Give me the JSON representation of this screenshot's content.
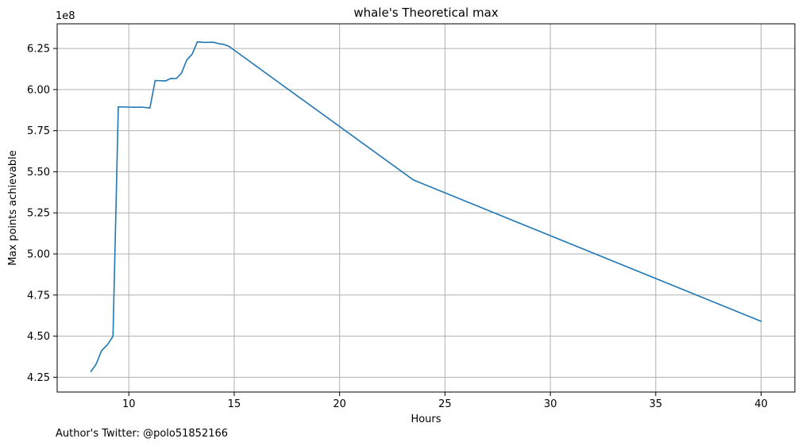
{
  "chart_data": {
    "type": "line",
    "title": "whale's Theoretical max",
    "xlabel": "Hours",
    "ylabel": "Max points achievable",
    "y_offset_label": "1e8",
    "y_scale_factor": 100000000,
    "footnote": "Author's Twitter: @polo51852166",
    "xlim": [
      6.6,
      41.6
    ],
    "ylim": [
      4.16,
      6.4
    ],
    "grid": true,
    "line_color": "#1f77b4",
    "x_ticks": [
      10,
      15,
      20,
      25,
      30,
      35,
      40
    ],
    "x_tick_labels": [
      "10",
      "15",
      "20",
      "25",
      "30",
      "35",
      "40"
    ],
    "y_ticks": [
      4.25,
      4.5,
      4.75,
      5.0,
      5.25,
      5.5,
      5.75,
      6.0,
      6.25
    ],
    "y_tick_labels": [
      "4.25",
      "4.50",
      "4.75",
      "5.00",
      "5.25",
      "5.50",
      "5.75",
      "6.00",
      "6.25"
    ],
    "series": [
      {
        "x": [
          8.2,
          8.45,
          8.7,
          9.0,
          9.25,
          9.5,
          10.0,
          10.3,
          10.6,
          11.0,
          11.25,
          11.75,
          12.0,
          12.25,
          12.5,
          12.75,
          13.0,
          13.25,
          13.6,
          14.0,
          14.25,
          14.5,
          14.75,
          23.5,
          40.0
        ],
        "y": [
          4.285,
          4.33,
          4.41,
          4.45,
          4.5,
          5.895,
          5.893,
          5.892,
          5.893,
          5.888,
          6.055,
          6.053,
          6.068,
          6.067,
          6.1,
          6.18,
          6.215,
          6.29,
          6.287,
          6.288,
          6.28,
          6.275,
          6.263,
          5.45,
          4.59
        ]
      }
    ]
  }
}
